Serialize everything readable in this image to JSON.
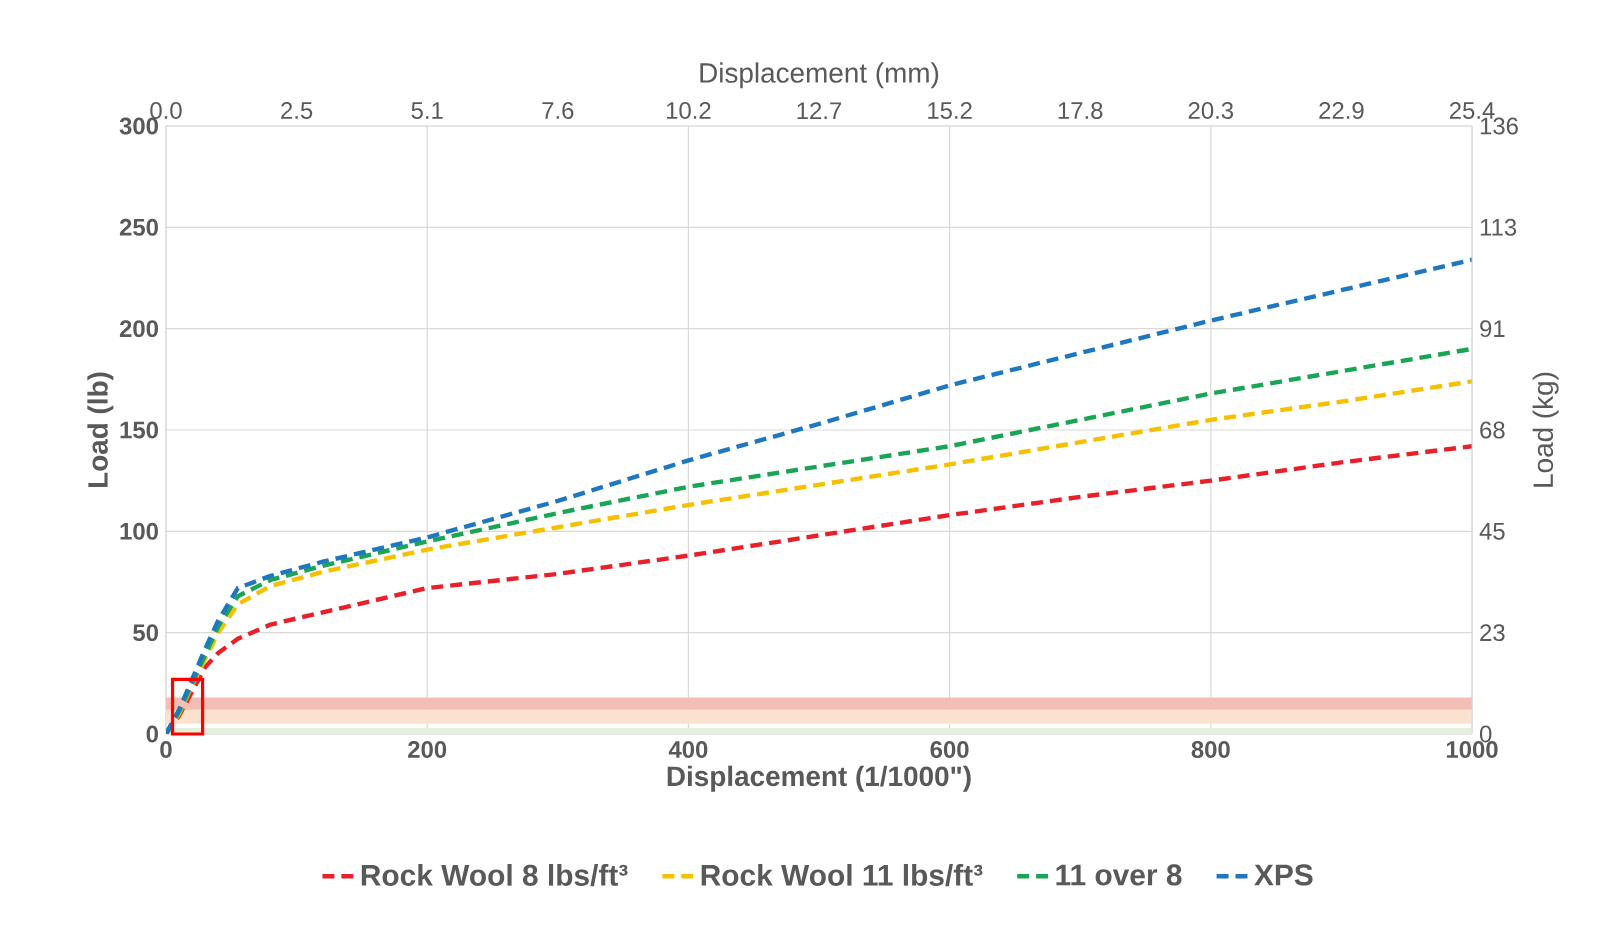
{
  "chart_data": {
    "type": "line",
    "xlabel": "Displacement (1/1000\")",
    "ylabel": "Load (lb)",
    "x2label": "Displacement (mm)",
    "y2label": "Load (kg)",
    "x": [
      0,
      10,
      20,
      30,
      40,
      55,
      80,
      120,
      200,
      300,
      400,
      500,
      600,
      700,
      800,
      900,
      1000
    ],
    "series": [
      {
        "name": "Rock Wool 8 lbs/ft³",
        "color": "#e8202a",
        "values": [
          0,
          9,
          21,
          33,
          40,
          47,
          54,
          60,
          72,
          79,
          88,
          98,
          108,
          117,
          125,
          134,
          142
        ]
      },
      {
        "name": "Rock Wool 11 lbs/ft³",
        "color": "#f5c000",
        "values": [
          0,
          10,
          24,
          37,
          50,
          64,
          73,
          80,
          91,
          102,
          113,
          123,
          133,
          144,
          155,
          164,
          174
        ]
      },
      {
        "name": "11 over 8",
        "color": "#1aa555",
        "values": [
          0,
          11,
          25,
          39,
          53,
          68,
          76,
          83,
          95,
          109,
          122,
          132,
          142,
          155,
          168,
          179,
          190
        ]
      },
      {
        "name": "XPS",
        "color": "#1f77c0",
        "values": [
          0,
          12,
          27,
          42,
          56,
          72,
          78,
          85,
          97,
          115,
          135,
          153,
          172,
          188,
          204,
          219,
          234
        ]
      }
    ],
    "xlim": [
      0,
      1000
    ],
    "xticks": [
      0,
      200,
      400,
      600,
      800,
      1000
    ],
    "ylim": [
      0,
      300
    ],
    "yticks": [
      0,
      50,
      100,
      150,
      200,
      250,
      300
    ],
    "x2lim": [
      0,
      25.4
    ],
    "x2ticks": [
      {
        "value": 0,
        "label": "0.0"
      },
      {
        "value": 2.54,
        "label": "2.5"
      },
      {
        "value": 5.08,
        "label": "5.1"
      },
      {
        "value": 7.62,
        "label": "7.6"
      },
      {
        "value": 10.16,
        "label": "10.2"
      },
      {
        "value": 12.7,
        "label": "12.7"
      },
      {
        "value": 15.24,
        "label": "15.2"
      },
      {
        "value": 17.78,
        "label": "17.8"
      },
      {
        "value": 20.32,
        "label": "20.3"
      },
      {
        "value": 22.86,
        "label": "22.9"
      },
      25.4
    ],
    "y2lim": [
      0,
      136.08
    ],
    "y2ticks": [
      0,
      {
        "value": 22.68,
        "label": "23"
      },
      {
        "value": 45.36,
        "label": "45"
      },
      {
        "value": 68.04,
        "label": "68"
      },
      {
        "value": 90.72,
        "label": "91"
      },
      {
        "value": 113.4,
        "label": "113"
      },
      {
        "value": 136.08,
        "label": "136"
      }
    ],
    "bands": [
      {
        "axis": "y",
        "from": 0,
        "to": 3,
        "color": "#e6efd9"
      },
      {
        "axis": "y",
        "from": 5,
        "to": 12,
        "color": "#fbe2cf"
      },
      {
        "axis": "y",
        "from": 12,
        "to": 18,
        "color": "#f4bdb5"
      }
    ],
    "grid": true,
    "legend": "bottom",
    "marker": "none",
    "line_style": "dashed"
  }
}
